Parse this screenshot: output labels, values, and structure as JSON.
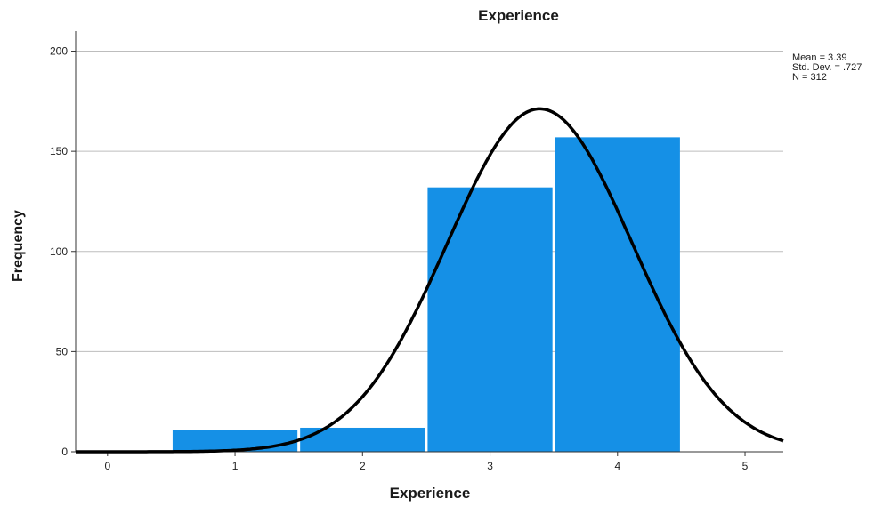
{
  "chart_data": {
    "type": "bar",
    "title": "Experience",
    "xlabel": "Experience",
    "ylabel": "Frequency",
    "bins": [
      {
        "x": 1,
        "value": 11
      },
      {
        "x": 2,
        "value": 12
      },
      {
        "x": 3,
        "value": 132
      },
      {
        "x": 4,
        "value": 157
      }
    ],
    "x_ticks": [
      "0",
      "1",
      "2",
      "3",
      "4",
      "5"
    ],
    "y_ticks": [
      "0",
      "50",
      "100",
      "150",
      "200"
    ],
    "xlim": [
      -0.25,
      5.3
    ],
    "ylim": [
      0,
      210
    ],
    "grid": "horizontal",
    "bar_color": "#1590E6",
    "curve_color": "#000000",
    "normal_curve": {
      "mean": 3.39,
      "std_dev": 0.727,
      "n": 312,
      "bin_width": 1
    },
    "statistics": {
      "mean": "Mean = 3.39",
      "std_dev": "Std. Dev. = .727",
      "n": "N = 312"
    }
  }
}
